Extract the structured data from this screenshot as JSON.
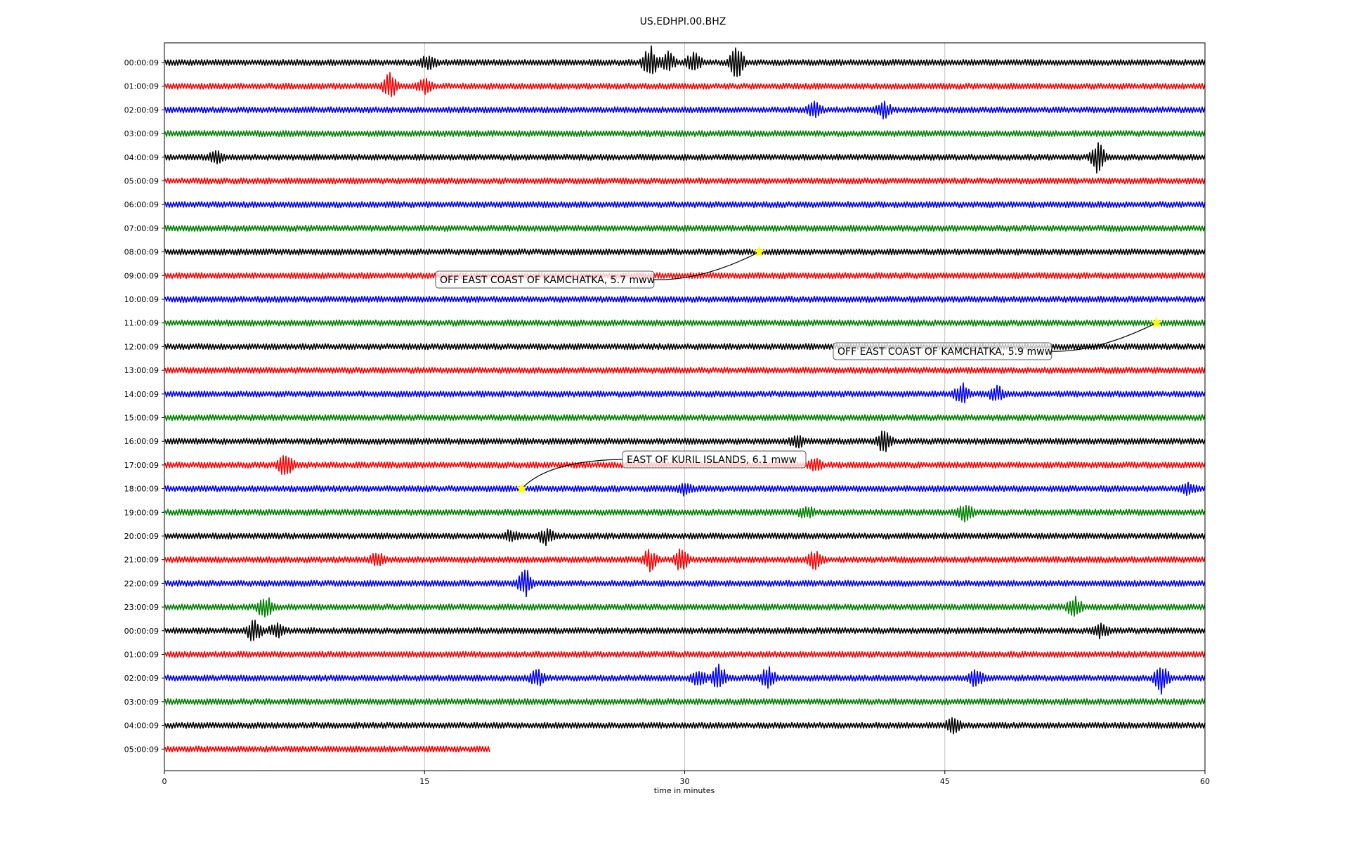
{
  "chart_data": {
    "type": "line",
    "title": "US.EDHPI.00.BHZ",
    "xlabel": "time in minutes",
    "ylabel": "",
    "xlim": [
      0,
      60
    ],
    "x_ticks": [
      0,
      15,
      30,
      45,
      60
    ],
    "x_tick_labels": [
      "0",
      "15",
      "30",
      "45",
      "60"
    ],
    "grid": "vertical lines at x ticks",
    "row_labels": [
      "00:00:09",
      "01:00:09",
      "02:00:09",
      "03:00:09",
      "04:00:09",
      "05:00:09",
      "06:00:09",
      "07:00:09",
      "08:00:09",
      "09:00:09",
      "10:00:09",
      "11:00:09",
      "12:00:09",
      "13:00:09",
      "14:00:09",
      "15:00:09",
      "16:00:09",
      "17:00:09",
      "18:00:09",
      "19:00:09",
      "20:00:09",
      "21:00:09",
      "22:00:09",
      "23:00:09",
      "00:00:09",
      "01:00:09",
      "02:00:09",
      "03:00:09",
      "04:00:09",
      "05:00:09"
    ],
    "trace_colors": [
      "#000000",
      "#ff0000",
      "#0000ff",
      "#008000"
    ],
    "last_row_end_minute": 18.8,
    "bursts": [
      {
        "row": 0,
        "minute": 28.0,
        "amp": 1.0
      },
      {
        "row": 0,
        "minute": 29.0,
        "amp": 0.6
      },
      {
        "row": 0,
        "minute": 30.5,
        "amp": 0.5
      },
      {
        "row": 0,
        "minute": 33.0,
        "amp": 0.9
      },
      {
        "row": 0,
        "minute": 15.2,
        "amp": 0.4
      },
      {
        "row": 1,
        "minute": 13.0,
        "amp": 0.7
      },
      {
        "row": 1,
        "minute": 15.0,
        "amp": 0.4
      },
      {
        "row": 2,
        "minute": 37.5,
        "amp": 0.4
      },
      {
        "row": 2,
        "minute": 41.5,
        "amp": 0.4
      },
      {
        "row": 4,
        "minute": 53.8,
        "amp": 0.9
      },
      {
        "row": 4,
        "minute": 3.0,
        "amp": 0.3
      },
      {
        "row": 14,
        "minute": 46.0,
        "amp": 0.6
      },
      {
        "row": 14,
        "minute": 48.0,
        "amp": 0.4
      },
      {
        "row": 16,
        "minute": 41.5,
        "amp": 0.6
      },
      {
        "row": 16,
        "minute": 36.5,
        "amp": 0.3
      },
      {
        "row": 17,
        "minute": 7.0,
        "amp": 0.7
      },
      {
        "row": 17,
        "minute": 37.5,
        "amp": 0.3
      },
      {
        "row": 18,
        "minute": 30.0,
        "amp": 0.3
      },
      {
        "row": 18,
        "minute": 59.0,
        "amp": 0.3
      },
      {
        "row": 19,
        "minute": 46.2,
        "amp": 0.5
      },
      {
        "row": 19,
        "minute": 37.0,
        "amp": 0.3
      },
      {
        "row": 20,
        "minute": 22.0,
        "amp": 0.4
      },
      {
        "row": 20,
        "minute": 20.0,
        "amp": 0.3
      },
      {
        "row": 21,
        "minute": 28.0,
        "amp": 0.6
      },
      {
        "row": 21,
        "minute": 29.8,
        "amp": 0.6
      },
      {
        "row": 21,
        "minute": 37.5,
        "amp": 0.5
      },
      {
        "row": 21,
        "minute": 12.3,
        "amp": 0.4
      },
      {
        "row": 22,
        "minute": 20.8,
        "amp": 0.8
      },
      {
        "row": 23,
        "minute": 52.5,
        "amp": 0.5
      },
      {
        "row": 23,
        "minute": 5.8,
        "amp": 0.6
      },
      {
        "row": 24,
        "minute": 5.2,
        "amp": 0.7
      },
      {
        "row": 24,
        "minute": 6.5,
        "amp": 0.4
      },
      {
        "row": 24,
        "minute": 54.0,
        "amp": 0.4
      },
      {
        "row": 26,
        "minute": 32.0,
        "amp": 0.7
      },
      {
        "row": 26,
        "minute": 34.8,
        "amp": 0.6
      },
      {
        "row": 26,
        "minute": 30.8,
        "amp": 0.5
      },
      {
        "row": 26,
        "minute": 46.8,
        "amp": 0.5
      },
      {
        "row": 26,
        "minute": 57.5,
        "amp": 0.8
      },
      {
        "row": 26,
        "minute": 21.5,
        "amp": 0.5
      },
      {
        "row": 28,
        "minute": 45.5,
        "amp": 0.4
      }
    ],
    "events": [
      {
        "label": "OFF EAST COAST OF KAMCHATKA, 5.7 mww",
        "row": 8,
        "minute": 34.3
      },
      {
        "label": "OFF EAST COAST OF KAMCHATKA, 5.9 mww",
        "row": 11,
        "minute": 57.2
      },
      {
        "label": "EAST OF KURIL ISLANDS, 6.1 mww",
        "row": 18,
        "minute": 20.6
      }
    ],
    "event_marker_color": "#ffff00"
  }
}
